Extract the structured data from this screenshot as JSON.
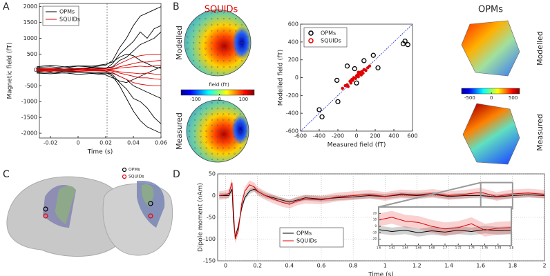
{
  "panel_labels": [
    "A",
    "B",
    "C",
    "D"
  ],
  "topomaps": {
    "squids_title": "SQUIDs",
    "opms_title": "OPMs",
    "row_labels": [
      "Modelled",
      "Measured"
    ],
    "squid_colorbar": {
      "label": "field (fT)",
      "lim": [
        -160,
        145
      ],
      "ticks": [
        -100,
        0,
        100
      ]
    },
    "opm_colorbar": {
      "lim": [
        -690,
        650
      ],
      "ticks": [
        -500,
        0,
        500
      ]
    }
  },
  "brain_legend": {
    "items": [
      {
        "name": "OPMs",
        "color": "#000000"
      },
      {
        "name": "SQUIDs",
        "color": "#e00000"
      }
    ]
  },
  "chart_data": [
    {
      "type": "line",
      "xlabel": "Time (s)",
      "ylabel": "Magnetic field (fT)",
      "xlim": [
        -0.028,
        0.06
      ],
      "ylim": [
        -2150,
        2100
      ],
      "xticks": [
        -0.02,
        0,
        0.02,
        0.04,
        0.06
      ],
      "yticks": [
        -2000,
        -1500,
        -1000,
        -500,
        0,
        500,
        1000,
        1500,
        2000
      ],
      "marker_x": 0.021,
      "x": [
        -0.03,
        -0.02,
        -0.01,
        0,
        0.01,
        0.02,
        0.025,
        0.03,
        0.035,
        0.04,
        0.045,
        0.05,
        0.055,
        0.06
      ],
      "series": [
        {
          "name": "OPMs",
          "color": "#000000",
          "traces": [
            [
              80,
              100,
              60,
              120,
              90,
              150,
              300,
              700,
              1000,
              1400,
              1700,
              1800,
              1900,
              2000
            ],
            [
              -50,
              -80,
              -40,
              -60,
              -100,
              -80,
              -200,
              -500,
              -900,
              -1300,
              -1600,
              -1800,
              -1900,
              -2000
            ],
            [
              20,
              40,
              10,
              30,
              60,
              40,
              200,
              500,
              700,
              900,
              1200,
              1000,
              1300,
              1400
            ],
            [
              -20,
              0,
              -30,
              -10,
              20,
              -40,
              -150,
              -400,
              -600,
              -900,
              -1000,
              -1200,
              -1500,
              -1700
            ],
            [
              50,
              30,
              60,
              40,
              80,
              60,
              100,
              300,
              400,
              600,
              800,
              900,
              1000,
              1200
            ],
            [
              -80,
              -60,
              -100,
              -70,
              -90,
              -120,
              -100,
              -200,
              -300,
              -500,
              -600,
              -700,
              -800,
              -900
            ],
            [
              100,
              150,
              100,
              130,
              120,
              180,
              250,
              400,
              500,
              450,
              300,
              200,
              100,
              50
            ],
            [
              -100,
              -120,
              -90,
              -140,
              -110,
              -160,
              -250,
              -350,
              -400,
              -300,
              -200,
              -100,
              0,
              100
            ]
          ]
        },
        {
          "name": "SQUIDs",
          "color": "#e00000",
          "traces": [
            [
              30,
              40,
              20,
              50,
              30,
              40,
              80,
              200,
              300,
              400,
              450,
              480,
              500,
              500
            ],
            [
              -30,
              -40,
              -20,
              -50,
              -30,
              -40,
              -80,
              -200,
              -300,
              -400,
              -450,
              -480,
              -500,
              -500
            ],
            [
              10,
              20,
              0,
              15,
              20,
              10,
              40,
              100,
              150,
              200,
              250,
              250,
              280,
              300
            ],
            [
              -10,
              -20,
              0,
              -15,
              -20,
              -10,
              -40,
              -100,
              -150,
              -200,
              -250,
              -250,
              -280,
              -300
            ],
            [
              5,
              0,
              10,
              0,
              5,
              0,
              20,
              60,
              80,
              100,
              120,
              100,
              130,
              150
            ],
            [
              -5,
              0,
              -10,
              0,
              -5,
              0,
              -20,
              -60,
              -80,
              -100,
              -120,
              -100,
              -130,
              -150
            ]
          ]
        }
      ]
    },
    {
      "type": "scatter",
      "xlabel": "Measured field (fT)",
      "ylabel": "Modelled field (fT)",
      "xlim": [
        -600,
        600
      ],
      "ylim": [
        -600,
        600
      ],
      "xticks": [
        -600,
        -400,
        -200,
        0,
        200,
        400,
        600
      ],
      "yticks": [
        -600,
        -400,
        -200,
        0,
        200,
        400,
        600
      ],
      "series": [
        {
          "name": "OPMs",
          "color": "#000000",
          "x": [
            -400,
            -370,
            -200,
            -210,
            -100,
            0,
            80,
            180,
            230,
            500,
            520,
            550,
            -20
          ],
          "y": [
            -360,
            -440,
            -270,
            -30,
            130,
            -60,
            190,
            250,
            110,
            380,
            410,
            370,
            100
          ]
        },
        {
          "name": "SQUIDs",
          "color": "#e00000",
          "x": [
            -150,
            -120,
            -100,
            -90,
            -70,
            -60,
            -40,
            -30,
            -10,
            0,
            10,
            20,
            30,
            40,
            50,
            60,
            70,
            80,
            100,
            120,
            140,
            -50,
            20
          ],
          "y": [
            -120,
            -90,
            -80,
            -100,
            -40,
            -60,
            -30,
            0,
            -10,
            20,
            30,
            10,
            40,
            60,
            30,
            70,
            50,
            90,
            80,
            110,
            130,
            -20,
            60
          ]
        }
      ]
    },
    {
      "type": "line",
      "xlabel": "Time (s)",
      "ylabel": "Dipole moment (nAm)",
      "xlim": [
        -0.05,
        2
      ],
      "ylim": [
        -150,
        50
      ],
      "grid": true,
      "xticks": [
        0,
        0.2,
        0.4,
        0.6,
        0.8,
        1,
        1.2,
        1.4,
        1.6,
        1.8,
        2
      ],
      "yticks": [
        -150,
        -100,
        -50,
        0,
        50
      ],
      "x": [
        -0.04,
        0,
        0.02,
        0.04,
        0.05,
        0.06,
        0.08,
        0.1,
        0.12,
        0.15,
        0.18,
        0.2,
        0.25,
        0.3,
        0.35,
        0.4,
        0.45,
        0.5,
        0.6,
        0.7,
        0.8,
        0.9,
        1,
        1.1,
        1.2,
        1.3,
        1.4,
        1.5,
        1.6,
        1.7,
        1.8,
        1.9,
        2
      ],
      "series": [
        {
          "name": "OPMs",
          "color": "#000000",
          "error": 6,
          "values": [
            0,
            0,
            0,
            15,
            -60,
            -95,
            -70,
            -30,
            -5,
            10,
            15,
            10,
            0,
            -5,
            -10,
            -15,
            -10,
            -5,
            -8,
            -5,
            -3,
            0,
            -2,
            2,
            0,
            3,
            -2,
            0,
            0,
            -3,
            0,
            2,
            0
          ]
        },
        {
          "name": "SQUIDs",
          "color": "#e00000",
          "error": 10,
          "values": [
            0,
            2,
            5,
            30,
            -40,
            -100,
            -80,
            -20,
            10,
            25,
            20,
            10,
            0,
            -8,
            -15,
            -20,
            -12,
            -8,
            -10,
            -3,
            0,
            3,
            -2,
            4,
            2,
            5,
            0,
            3,
            8,
            -2,
            4,
            6,
            3
          ]
        }
      ]
    },
    {
      "type": "line",
      "xlim": [
        1.6,
        1.8
      ],
      "ylim": [
        -30,
        30
      ],
      "xticks": [
        1.6,
        1.62,
        1.64,
        1.66,
        1.68,
        1.7,
        1.72,
        1.74,
        1.76,
        1.78,
        1.8
      ],
      "yticks": [
        -20,
        -10,
        0,
        10,
        20
      ],
      "x": [
        1.6,
        1.62,
        1.64,
        1.66,
        1.68,
        1.7,
        1.72,
        1.74,
        1.76,
        1.78,
        1.8
      ],
      "series": [
        {
          "name": "OPMs",
          "color": "#000000",
          "error": 6,
          "values": [
            -5,
            -8,
            -6,
            -10,
            -7,
            -9,
            -6,
            -8,
            -5,
            -7,
            -6
          ]
        },
        {
          "name": "SQUIDs",
          "color": "#e00000",
          "error": 10,
          "values": [
            10,
            14,
            8,
            6,
            0,
            -4,
            -2,
            4,
            -6,
            -3,
            -2
          ]
        }
      ]
    }
  ]
}
